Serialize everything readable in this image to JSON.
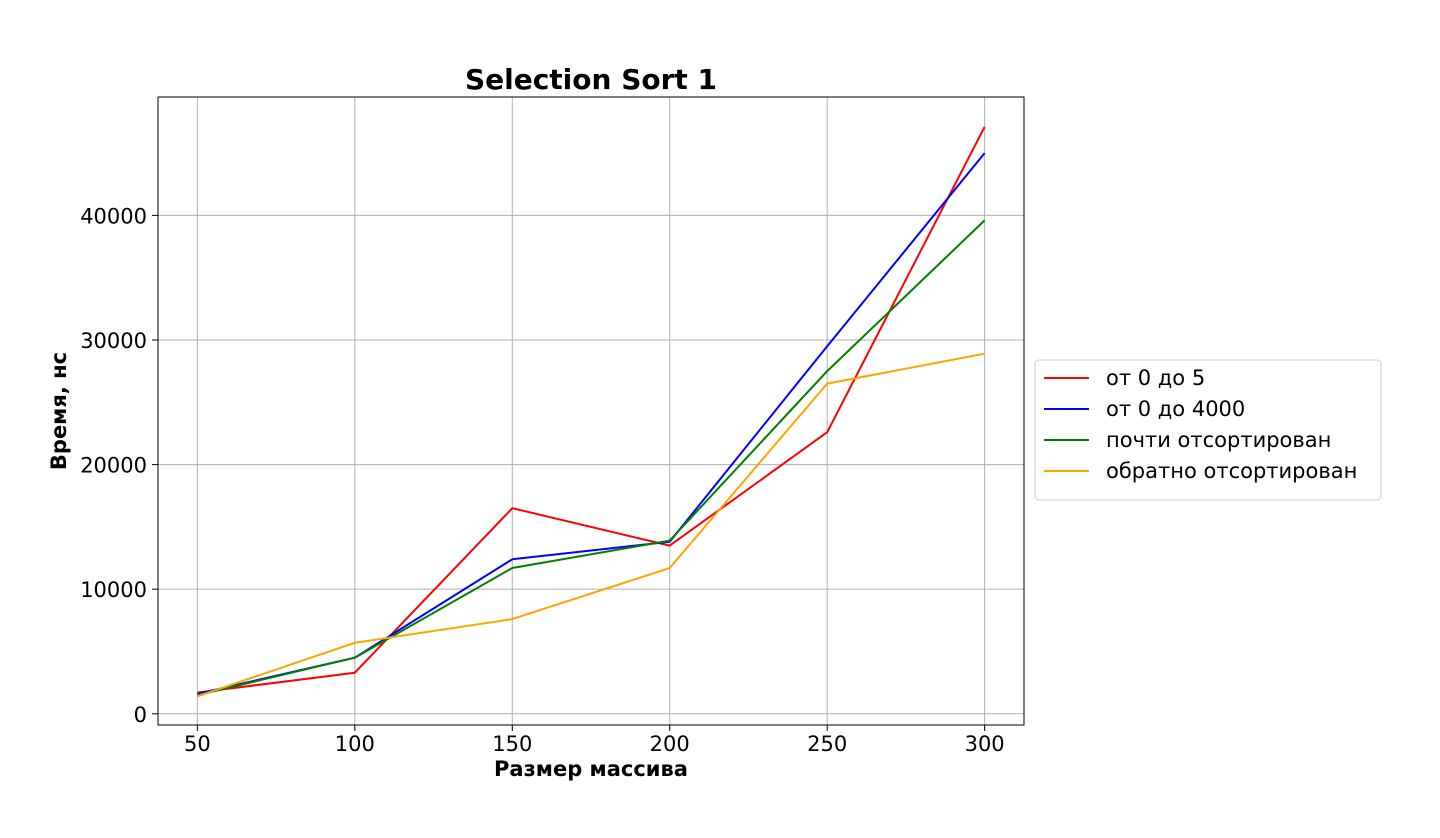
{
  "chart_data": {
    "type": "line",
    "title": "Selection Sort 1",
    "xlabel": "Размер массива",
    "ylabel": "Время, нс",
    "x": [
      50,
      100,
      150,
      200,
      250,
      300
    ],
    "xticks": [
      50,
      100,
      150,
      200,
      250,
      300
    ],
    "yticks": [
      0,
      10000,
      20000,
      30000,
      40000
    ],
    "xlim": [
      37.5,
      312.5
    ],
    "ylim": [
      -900,
      49500
    ],
    "grid": true,
    "legend_position": "right",
    "series": [
      {
        "name": "от 0 до 5",
        "color": "#ff0000",
        "values": [
          1700,
          3300,
          16500,
          13500,
          22600,
          47100
        ]
      },
      {
        "name": "от 0 до 4000",
        "color": "#0000ff",
        "values": [
          1600,
          4500,
          12400,
          13800,
          29500,
          45000
        ]
      },
      {
        "name": "почти отсортирован",
        "color": "#008000",
        "values": [
          1500,
          4500,
          11700,
          13900,
          27500,
          39600
        ]
      },
      {
        "name": "обратно отсортирован",
        "color": "#ffa500",
        "values": [
          1400,
          5700,
          7600,
          11700,
          26500,
          28900
        ]
      }
    ]
  }
}
